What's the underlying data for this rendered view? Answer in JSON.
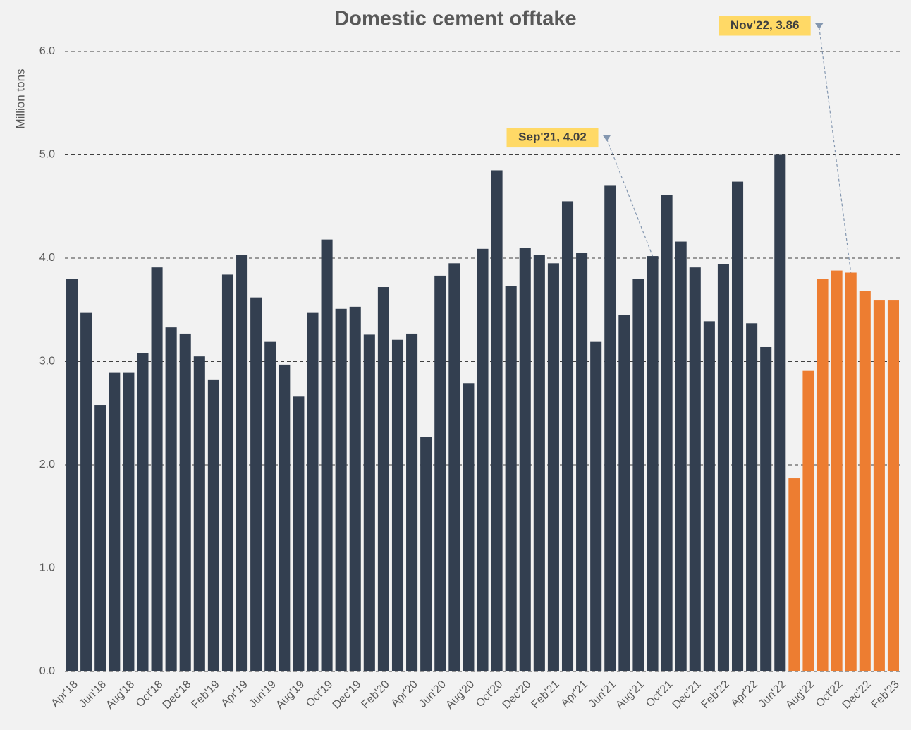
{
  "chart_data": {
    "type": "bar",
    "title": "Domestic cement offtake",
    "y_label": "Million tons",
    "categories": [
      "Apr'18",
      null,
      "Jun'18",
      null,
      "Aug'18",
      null,
      "Oct'18",
      null,
      "Dec'18",
      null,
      "Feb'19",
      null,
      "Apr'19",
      null,
      "Jun'19",
      null,
      "Aug'19",
      null,
      "Oct'19",
      null,
      "Dec'19",
      null,
      "Feb'20",
      null,
      "Apr'20",
      null,
      "Jun'20",
      null,
      "Aug'20",
      null,
      "Oct'20",
      null,
      "Dec'20",
      null,
      "Feb'21",
      null,
      "Apr'21",
      null,
      "Jun'21",
      null,
      "Aug'21",
      null,
      "Oct'21",
      null,
      "Dec'21",
      null,
      "Feb'22",
      null,
      "Apr'22",
      null,
      "Jun'22",
      null,
      "Aug'22",
      null,
      "Oct'22",
      null,
      "Dec'22",
      null,
      "Feb'23"
    ],
    "values": [
      3.8,
      3.47,
      2.58,
      2.89,
      2.89,
      3.08,
      3.91,
      3.33,
      3.27,
      3.05,
      2.82,
      3.84,
      4.03,
      3.62,
      3.19,
      2.97,
      2.66,
      3.47,
      4.18,
      3.51,
      3.53,
      3.26,
      3.72,
      3.21,
      3.27,
      2.27,
      3.83,
      3.95,
      2.79,
      4.09,
      4.85,
      3.73,
      4.1,
      4.03,
      3.95,
      4.55,
      4.05,
      3.19,
      4.7,
      3.45,
      3.8,
      4.02,
      4.61,
      4.16,
      3.91,
      3.39,
      3.94,
      4.74,
      3.37,
      3.14,
      5.0,
      1.87,
      2.91,
      3.8,
      3.88,
      3.86,
      3.68,
      3.59,
      3.59
    ],
    "colors": [
      "#333f50",
      "#333f50",
      "#333f50",
      "#333f50",
      "#333f50",
      "#333f50",
      "#333f50",
      "#333f50",
      "#333f50",
      "#333f50",
      "#333f50",
      "#333f50",
      "#333f50",
      "#333f50",
      "#333f50",
      "#333f50",
      "#333f50",
      "#333f50",
      "#333f50",
      "#333f50",
      "#333f50",
      "#333f50",
      "#333f50",
      "#333f50",
      "#333f50",
      "#333f50",
      "#333f50",
      "#333f50",
      "#333f50",
      "#333f50",
      "#333f50",
      "#333f50",
      "#333f50",
      "#333f50",
      "#333f50",
      "#333f50",
      "#333f50",
      "#333f50",
      "#333f50",
      "#333f50",
      "#333f50",
      "#333f50",
      "#333f50",
      "#333f50",
      "#333f50",
      "#333f50",
      "#333f50",
      "#333f50",
      "#333f50",
      "#333f50",
      "#333f50",
      "#ed7d31",
      "#ed7d31",
      "#ed7d31",
      "#ed7d31",
      "#ed7d31",
      "#ed7d31",
      "#ed7d31",
      "#ed7d31"
    ],
    "annotations": [
      {
        "text": "Sep'21, 4.02",
        "value": 4.02
      },
      {
        "text": "Nov'22, 3.86",
        "value": 3.86
      }
    ],
    "ylim": [
      0,
      6
    ],
    "yticks": [
      {
        "value": 0,
        "label": "0.0"
      },
      {
        "value": 1,
        "label": "1.0"
      },
      {
        "value": 2,
        "label": "2.0"
      },
      {
        "value": 3,
        "label": "3.0"
      },
      {
        "value": 4,
        "label": "4.0"
      },
      {
        "value": 5,
        "label": "5.0"
      },
      {
        "value": 6,
        "label": "6.0"
      }
    ],
    "grid": true
  }
}
